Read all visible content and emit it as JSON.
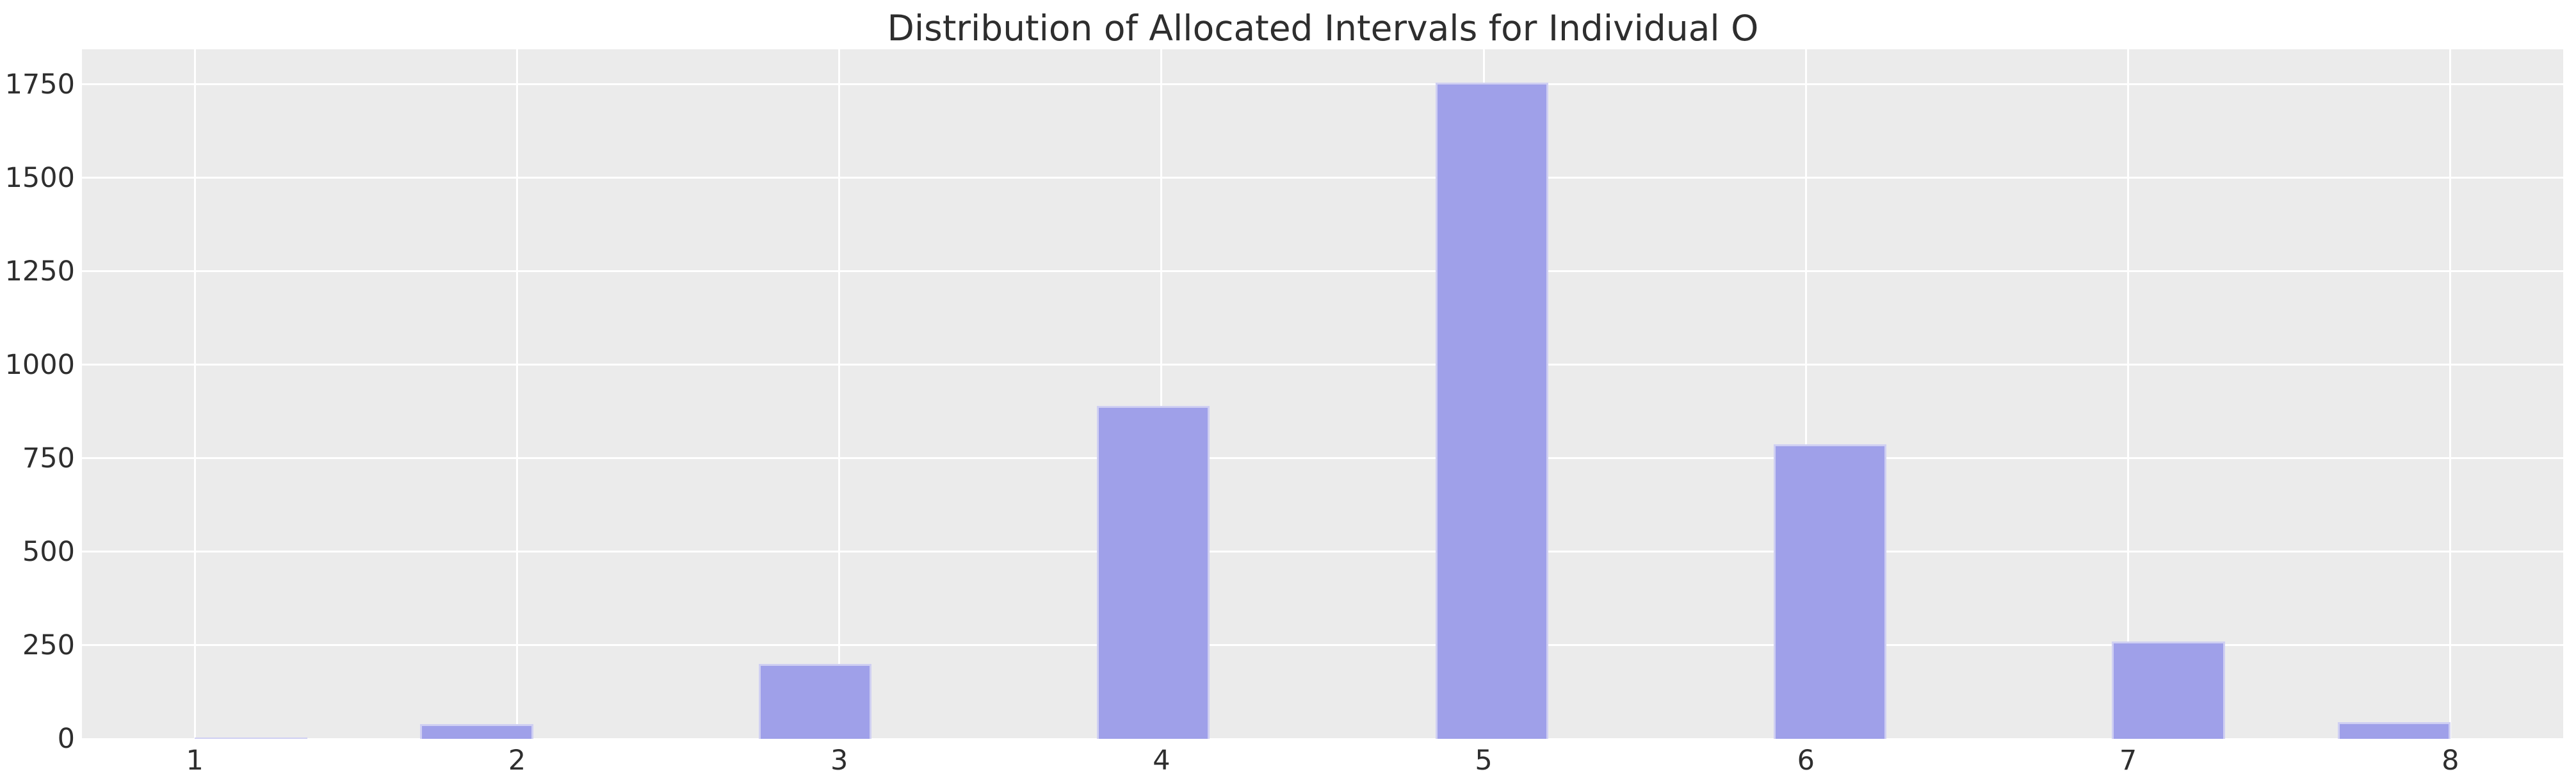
{
  "chart_data": {
    "type": "bar",
    "subtype": "histogram",
    "title": "Distribution of Allocated Intervals for Individual O",
    "xlabel": "",
    "ylabel": "",
    "xlim": [
      0.65,
      8.35
    ],
    "ylim": [
      0,
      1844
    ],
    "grid": true,
    "legend_position": "none",
    "x_ticks": [
      1,
      2,
      3,
      4,
      5,
      6,
      7,
      8
    ],
    "x_tick_labels": [
      "1",
      "2",
      "3",
      "4",
      "5",
      "6",
      "7",
      "8"
    ],
    "y_ticks": [
      0,
      250,
      500,
      750,
      1000,
      1250,
      1500,
      1750
    ],
    "y_tick_labels": [
      "0",
      "250",
      "500",
      "750",
      "1000",
      "1250",
      "1500",
      "1750"
    ],
    "bin_width": 0.35,
    "categories": [
      "1",
      "2",
      "3",
      "4",
      "5",
      "6",
      "7",
      "8"
    ],
    "values": [
      4,
      40,
      200,
      890,
      1755,
      787,
      260,
      44
    ],
    "bars": [
      {
        "x_left": 1.0,
        "label": "1",
        "count": 4
      },
      {
        "x_left": 1.7,
        "label": "2",
        "count": 40
      },
      {
        "x_left": 2.75,
        "label": "3",
        "count": 200
      },
      {
        "x_left": 3.8,
        "label": "4",
        "count": 890
      },
      {
        "x_left": 4.85,
        "label": "5",
        "count": 1755
      },
      {
        "x_left": 5.9,
        "label": "6",
        "count": 787
      },
      {
        "x_left": 6.95,
        "label": "7",
        "count": 260
      },
      {
        "x_left": 7.65,
        "label": "8",
        "count": 44
      }
    ],
    "colors": {
      "figure_background": "#ffffff",
      "plot_background": "#ebebeb",
      "grid": "#ffffff",
      "bar_fill": "#9fa0e9",
      "bar_edge": "#cfcff2",
      "text": "#2e2e2e"
    }
  }
}
